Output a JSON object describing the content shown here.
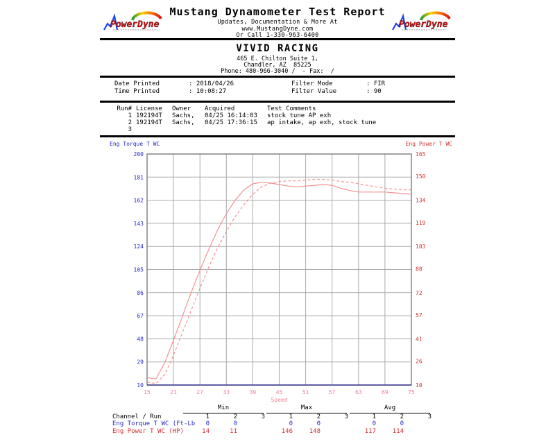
{
  "header": {
    "title": "Mustang Dynamometer Test Report",
    "subtitle1": "Updates, Documentation & More At",
    "subtitle2": "www.MustangDyne.com",
    "subtitle3": "Or Call 1-330-963-6400",
    "logo_text": "PowerDyne"
  },
  "shop": {
    "name": "VIVID RACING",
    "address1": "465 E. Chilton Suite 1,",
    "address2": "Chandler, AZ  85225",
    "phone_line": "Phone: 480-966-3040 /  - Fax:  /"
  },
  "print_info": {
    "date_label": "Date Printed",
    "date_value": ": 2018/04/26",
    "time_label": "Time Printed",
    "time_value": ": 10:08:27",
    "filter_mode_label": "Filter Mode",
    "filter_mode_value": ": FIR",
    "filter_value_label": "Filter Value",
    "filter_value_value": ": 90"
  },
  "runs": {
    "h_run": "Run#",
    "h_license": "License",
    "h_owner": "Owner",
    "h_acquired": "Acquired",
    "h_comments": "Test Comments",
    "rows": [
      {
        "run": "1",
        "license": "192194T",
        "owner": "Sachs,",
        "acquired": "04/25 16:14:03",
        "comments": "stock tune AP exh"
      },
      {
        "run": "2",
        "license": "192194T",
        "owner": "Sachs,",
        "acquired": "04/25 17:36:15",
        "comments": "ap intake, ap exh, stock tune"
      },
      {
        "run": "3",
        "license": "",
        "owner": "",
        "acquired": "",
        "comments": ""
      }
    ]
  },
  "chart_data": {
    "type": "line",
    "grid": true,
    "left_axis": {
      "label": "Eng Torque T WC",
      "min": 10,
      "max": 200,
      "ticks": [
        200,
        181,
        162,
        143,
        124,
        105,
        86,
        67,
        48,
        29,
        10
      ],
      "color": "#2828c8"
    },
    "right_axis": {
      "label": "Eng Power T WC",
      "min": 10,
      "max": 165,
      "ticks": [
        165,
        150,
        134,
        119,
        103,
        88,
        72,
        57,
        41,
        26,
        10
      ],
      "color": "#d62f2f"
    },
    "x_axis": {
      "label": "Speed",
      "min": 15,
      "max": 75,
      "ticks": [
        15,
        21,
        27,
        33,
        39,
        45,
        51,
        57,
        63,
        69,
        75
      ],
      "color": "#ef8298"
    },
    "grid_color": "#a9a9a9",
    "border_color": "#7a7a7a",
    "baseline_color": "#3a3a9a",
    "x": [
      15,
      17,
      19,
      21,
      23,
      25,
      27,
      29,
      31,
      33,
      35,
      37,
      39,
      41,
      43,
      45,
      47,
      49,
      51,
      53,
      55,
      57,
      59,
      61,
      63,
      65,
      67,
      69,
      71,
      73,
      75
    ],
    "series": [
      {
        "name": "Run 1 Eng Power T WC (HP)",
        "style": "solid",
        "axis": "right",
        "color": "#f59191",
        "y": [
          15,
          14,
          25,
          40,
          56,
          72,
          87,
          101,
          114,
          125,
          134,
          141,
          145,
          146,
          145.5,
          144.5,
          143.5,
          143,
          143.5,
          144,
          144.5,
          144,
          142,
          140.5,
          139.5,
          139.5,
          139.5,
          139.5,
          139,
          138.5,
          138
        ]
      },
      {
        "name": "Run 2 Eng Power T WC (HP)",
        "style": "dashed",
        "axis": "right",
        "color": "#f59191",
        "y": [
          12,
          11,
          17,
          30,
          45,
          60,
          75,
          89,
          102,
          113,
          123,
          131,
          138,
          143,
          145.5,
          146.5,
          147,
          147,
          147.5,
          148,
          148,
          147.5,
          146.5,
          146,
          145,
          144,
          143,
          142,
          141.5,
          141,
          141
        ]
      }
    ]
  },
  "summary": {
    "group_headers": [
      "Min",
      "Max",
      "Avg"
    ],
    "channel_run_label": "Channel / Run",
    "run_numbers": [
      "1",
      "2",
      "3",
      "1",
      "2",
      "3",
      "1",
      "2",
      "3"
    ],
    "rows": [
      {
        "label": "Eng Torque T WC (Ft-Lb",
        "values": [
          "0",
          "0",
          "",
          "0",
          "0",
          "",
          "0",
          "0",
          ""
        ]
      },
      {
        "label": "Eng Power T WC (HP)",
        "values": [
          "14",
          "11",
          "",
          "146",
          "148",
          "",
          "117",
          "114",
          ""
        ]
      }
    ]
  }
}
